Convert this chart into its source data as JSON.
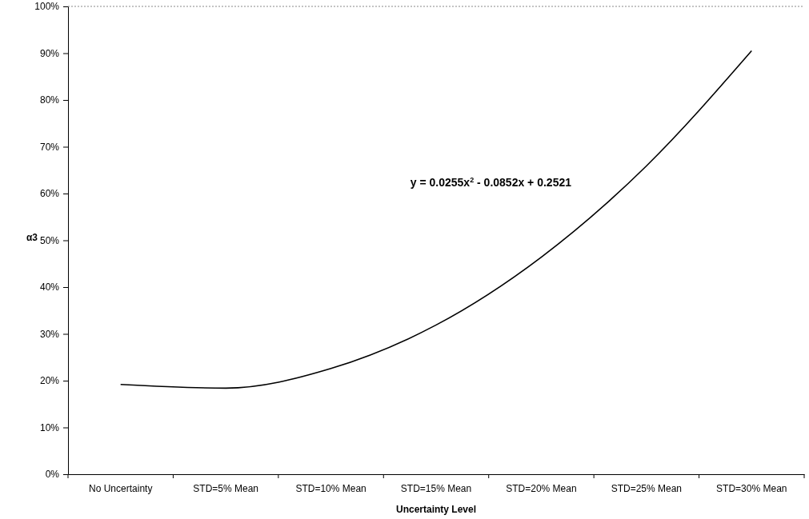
{
  "chart_data": {
    "type": "line",
    "xlabel": "Uncertainty Level",
    "ylabel": "α3",
    "categories": [
      "No Uncertainty",
      "STD=5% Mean",
      "STD=10% Mean",
      "STD=15% Mean",
      "STD=20% Mean",
      "STD=25% Mean",
      "STD=30% Mean"
    ],
    "series": [
      {
        "color": "#000000",
        "values": [
          19.2,
          18.4,
          22.6,
          31.9,
          46.4,
          65.9,
          90.5
        ]
      }
    ],
    "ylim": [
      0,
      100
    ],
    "yticks": [
      {
        "value": 0,
        "label": "0%"
      },
      {
        "value": 10,
        "label": "10%"
      },
      {
        "value": 20,
        "label": "20%"
      },
      {
        "value": 30,
        "label": "30%"
      },
      {
        "value": 40,
        "label": "40%"
      },
      {
        "value": 50,
        "label": "50%"
      },
      {
        "value": 60,
        "label": "60%"
      },
      {
        "value": 70,
        "label": "70%"
      },
      {
        "value": 80,
        "label": "80%"
      },
      {
        "value": 90,
        "label": "90%"
      },
      {
        "value": 100,
        "label": "100%"
      }
    ],
    "annotations": [
      "y = 0.0255x$^{2}$ - 0.0852x + 0.2521"
    ],
    "grid": false,
    "marker": "none",
    "line_style": "solid"
  }
}
